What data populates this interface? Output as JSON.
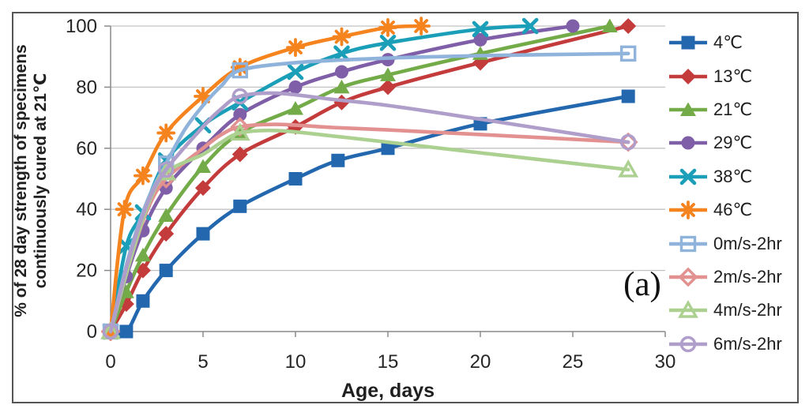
{
  "figure": {
    "annotation": "(a)"
  },
  "chart_data": {
    "type": "line",
    "title": "",
    "xlabel": "Age, days",
    "ylabel": "% of 28 day strength of specimens continuously cured at 21℃",
    "ylabel_lines": [
      "% of 28 day strength of specimens",
      "continuously cured at 21℃"
    ],
    "xlim": [
      0,
      30
    ],
    "ylim": [
      0,
      100
    ],
    "x_ticks": [
      0,
      5,
      10,
      15,
      20,
      25,
      30
    ],
    "y_ticks": [
      0,
      20,
      40,
      60,
      80,
      100
    ],
    "grid": "horizontal",
    "legend_position": "right",
    "grid_color": "#c2c2c2",
    "axis_color": "#8a8a8a",
    "text_color": "#262626",
    "series": [
      {
        "name": "4℃",
        "color": "#2368AE",
        "marker": "square",
        "open": false,
        "marker_x": "all",
        "points": [
          [
            0,
            0
          ],
          [
            0.85,
            0
          ],
          [
            1.75,
            10
          ],
          [
            3,
            20
          ],
          [
            5,
            32
          ],
          [
            7,
            41
          ],
          [
            10,
            50
          ],
          [
            12.3,
            56
          ],
          [
            15,
            60
          ],
          [
            20,
            68
          ],
          [
            28,
            77
          ]
        ]
      },
      {
        "name": "13℃",
        "color": "#C43B3C",
        "marker": "diamond",
        "open": false,
        "marker_x": "all",
        "points": [
          [
            0,
            0
          ],
          [
            0.85,
            9
          ],
          [
            1.75,
            20
          ],
          [
            3,
            32
          ],
          [
            5,
            47
          ],
          [
            7,
            58
          ],
          [
            10,
            67
          ],
          [
            12.5,
            75
          ],
          [
            15,
            80
          ],
          [
            20,
            88
          ],
          [
            28,
            100
          ]
        ]
      },
      {
        "name": "21℃",
        "color": "#73AB49",
        "marker": "triangle",
        "open": false,
        "marker_x": "all",
        "points": [
          [
            0,
            0
          ],
          [
            0.85,
            13
          ],
          [
            1.75,
            25
          ],
          [
            3,
            38
          ],
          [
            5,
            54
          ],
          [
            7,
            65
          ],
          [
            10,
            73
          ],
          [
            12.5,
            80
          ],
          [
            15,
            84
          ],
          [
            20,
            91
          ],
          [
            27,
            100
          ]
        ]
      },
      {
        "name": "29℃",
        "color": "#7F5FA8",
        "marker": "circle",
        "open": false,
        "marker_x": "all",
        "points": [
          [
            0,
            0
          ],
          [
            0.85,
            18
          ],
          [
            1.75,
            33
          ],
          [
            3,
            47
          ],
          [
            5,
            60
          ],
          [
            7,
            71
          ],
          [
            10,
            80
          ],
          [
            12.5,
            85
          ],
          [
            15,
            89
          ],
          [
            20,
            95.5
          ],
          [
            25,
            100
          ]
        ]
      },
      {
        "name": "38℃",
        "color": "#1B9FB8",
        "marker": "x",
        "open": false,
        "marker_x": "all",
        "points": [
          [
            0,
            0
          ],
          [
            0.85,
            28
          ],
          [
            1.75,
            39
          ],
          [
            3,
            56
          ],
          [
            5,
            67.5
          ],
          [
            7,
            75
          ],
          [
            10,
            85
          ],
          [
            12.5,
            91
          ],
          [
            15,
            94.5
          ],
          [
            20,
            99
          ],
          [
            22.7,
            100
          ]
        ]
      },
      {
        "name": "46℃",
        "color": "#F5831E",
        "marker": "asterisk",
        "open": false,
        "marker_x": "all",
        "points": [
          [
            0,
            0
          ],
          [
            0.75,
            40
          ],
          [
            1.75,
            51
          ],
          [
            3,
            65
          ],
          [
            5,
            77
          ],
          [
            7,
            86.5
          ],
          [
            10,
            93
          ],
          [
            12.5,
            96.5
          ],
          [
            15,
            99.5
          ],
          [
            16.8,
            100
          ]
        ]
      },
      {
        "name": "0m/s-2hr",
        "color": "#8FB3DB",
        "marker": "square",
        "open": true,
        "marker_x": [
          0,
          3,
          7,
          28
        ],
        "points": [
          [
            0,
            0
          ],
          [
            1,
            25
          ],
          [
            2,
            43
          ],
          [
            3,
            55
          ],
          [
            4,
            66
          ],
          [
            5,
            74
          ],
          [
            6,
            80.5
          ],
          [
            7,
            85.5
          ],
          [
            10,
            88
          ],
          [
            15,
            89.5
          ],
          [
            20,
            90.3
          ],
          [
            28,
            91
          ]
        ]
      },
      {
        "name": "2m/s-2hr",
        "color": "#E29090",
        "marker": "diamond",
        "open": true,
        "marker_x": [
          0,
          3,
          7,
          28
        ],
        "points": [
          [
            0,
            0
          ],
          [
            1,
            22
          ],
          [
            2,
            40
          ],
          [
            3,
            50
          ],
          [
            5,
            60
          ],
          [
            6,
            64.5
          ],
          [
            7,
            67
          ],
          [
            9,
            67.8
          ],
          [
            12,
            66.8
          ],
          [
            15,
            66
          ],
          [
            20,
            64.5
          ],
          [
            28,
            62
          ]
        ]
      },
      {
        "name": "4m/s-2hr",
        "color": "#ABD08F",
        "marker": "triangle",
        "open": true,
        "marker_x": [
          0,
          3,
          7,
          28
        ],
        "points": [
          [
            0,
            0
          ],
          [
            1,
            22
          ],
          [
            2,
            41
          ],
          [
            3,
            52
          ],
          [
            5,
            58
          ],
          [
            6,
            62
          ],
          [
            7,
            65
          ],
          [
            9,
            65.8
          ],
          [
            12,
            64
          ],
          [
            15,
            62
          ],
          [
            20,
            58.5
          ],
          [
            28,
            53
          ]
        ]
      },
      {
        "name": "6m/s-2hr",
        "color": "#AF9DCA",
        "marker": "circle",
        "open": true,
        "marker_x": [
          0,
          3,
          7,
          28
        ],
        "points": [
          [
            0,
            0
          ],
          [
            1,
            24
          ],
          [
            2,
            42
          ],
          [
            3,
            53
          ],
          [
            5,
            67
          ],
          [
            6,
            73
          ],
          [
            7,
            77
          ],
          [
            9,
            78
          ],
          [
            12,
            76
          ],
          [
            15,
            74
          ],
          [
            20,
            69.5
          ],
          [
            28,
            62
          ]
        ]
      }
    ]
  }
}
